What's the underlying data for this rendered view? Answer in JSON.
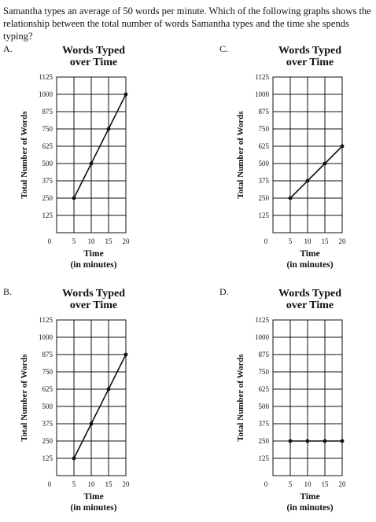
{
  "question": "Samantha types an average of 50 words per minute. Which of the following graphs shows the relationship between the total number of words Samantha types and the time she spends typing?",
  "chart_data": [
    {
      "option": "A.",
      "type": "line",
      "title": "Words Typed over Time",
      "title_lines": [
        "Words Typed",
        "over Time"
      ],
      "xlabel": "Time",
      "xlabel_sub": "(in minutes)",
      "ylabel": "Total Number of Words",
      "x_ticks": [
        "0",
        "5",
        "10",
        "15",
        "20"
      ],
      "y_ticks": [
        "125",
        "250",
        "375",
        "500",
        "625",
        "750",
        "875",
        "1000",
        "1125"
      ],
      "xlim": [
        0,
        20
      ],
      "ylim": [
        0,
        1125
      ],
      "grid": true,
      "x": [
        5,
        10,
        15,
        20
      ],
      "y": [
        250,
        500,
        750,
        1000
      ]
    },
    {
      "option": "C.",
      "type": "line",
      "title": "Words Typed over Time",
      "title_lines": [
        "Words Typed",
        "over Time"
      ],
      "xlabel": "Time",
      "xlabel_sub": "(in minutes)",
      "ylabel": "Total Number of Words",
      "x_ticks": [
        "0",
        "5",
        "10",
        "15",
        "20"
      ],
      "y_ticks": [
        "125",
        "250",
        "375",
        "500",
        "625",
        "750",
        "875",
        "1000",
        "1125"
      ],
      "xlim": [
        0,
        20
      ],
      "ylim": [
        0,
        1125
      ],
      "grid": true,
      "x": [
        5,
        10,
        15,
        20
      ],
      "y": [
        250,
        375,
        500,
        625
      ]
    },
    {
      "option": "B.",
      "type": "line",
      "title": "Words Typed over Time",
      "title_lines": [
        "Words Typed",
        "over Time"
      ],
      "xlabel": "Time",
      "xlabel_sub": "(in minutes)",
      "ylabel": "Total Number of Words",
      "x_ticks": [
        "0",
        "5",
        "10",
        "15",
        "20"
      ],
      "y_ticks": [
        "125",
        "250",
        "375",
        "500",
        "625",
        "750",
        "875",
        "1000",
        "1125"
      ],
      "xlim": [
        0,
        20
      ],
      "ylim": [
        0,
        1125
      ],
      "grid": true,
      "x": [
        5,
        10,
        15,
        20
      ],
      "y": [
        125,
        375,
        625,
        875
      ]
    },
    {
      "option": "D.",
      "type": "line",
      "title": "Words Typed over Time",
      "title_lines": [
        "Words Typed",
        "over Time"
      ],
      "xlabel": "Time",
      "xlabel_sub": "(in minutes)",
      "ylabel": "Total Number of Words",
      "x_ticks": [
        "0",
        "5",
        "10",
        "15",
        "20"
      ],
      "y_ticks": [
        "125",
        "250",
        "375",
        "500",
        "625",
        "750",
        "875",
        "1000",
        "1125"
      ],
      "xlim": [
        0,
        20
      ],
      "ylim": [
        0,
        1125
      ],
      "grid": true,
      "x": [
        5,
        10,
        15,
        20
      ],
      "y": [
        250,
        250,
        250,
        250
      ]
    }
  ]
}
